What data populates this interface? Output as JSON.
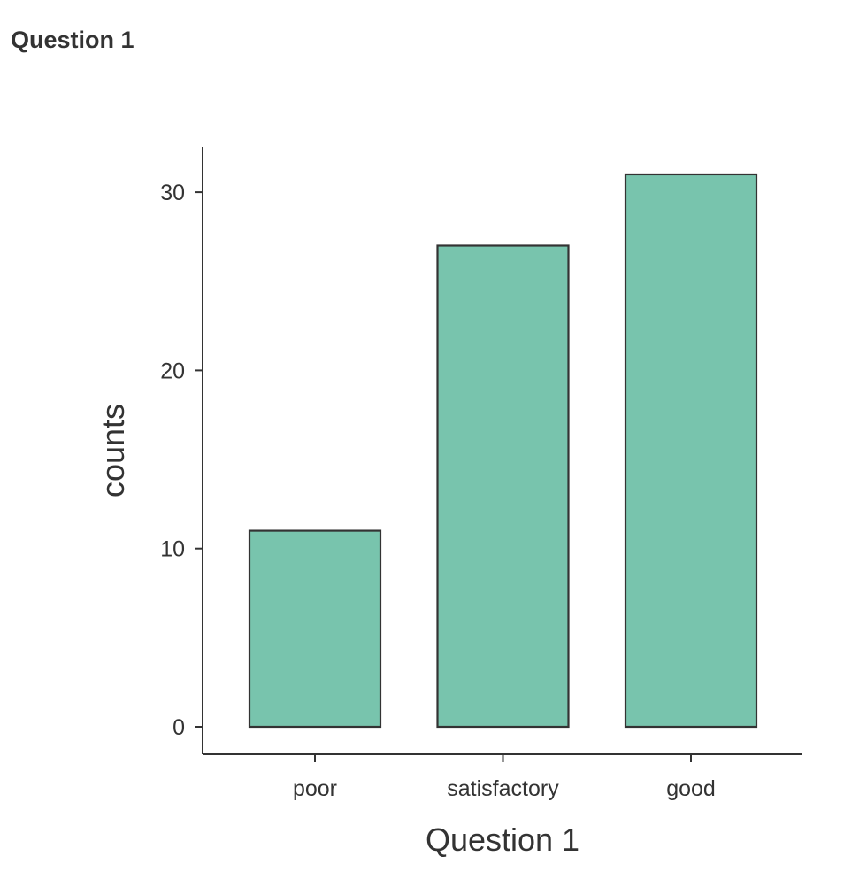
{
  "page": {
    "title": "Question 1"
  },
  "chart_data": {
    "type": "bar",
    "categories": [
      "poor",
      "satisfactory",
      "good"
    ],
    "values": [
      11,
      27,
      31
    ],
    "xlabel": "Question 1",
    "ylabel": "counts",
    "ylim": [
      0,
      31
    ],
    "yticks": [
      0,
      10,
      20,
      30
    ],
    "grid": false,
    "bar_color": "#78c4ad",
    "bar_outline": "#333333"
  }
}
